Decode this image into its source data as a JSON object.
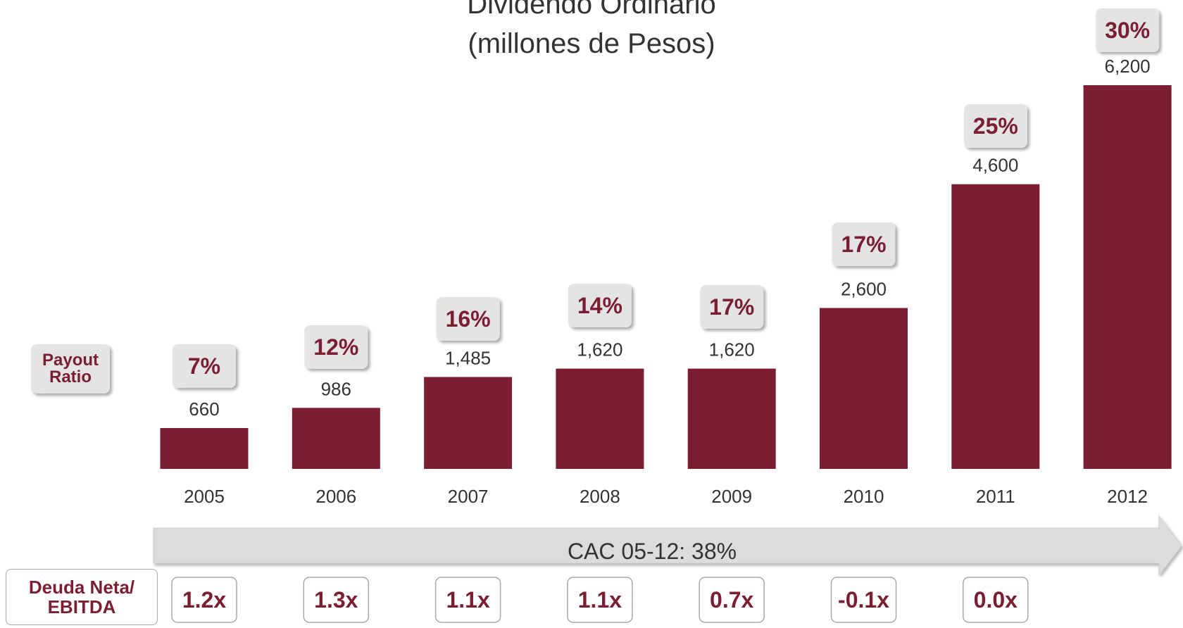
{
  "colors": {
    "bar": "#7b1e32",
    "accent_text": "#7b1e32",
    "box_fill": "#e4e4e4",
    "arrow_fill": "#dcdcdc"
  },
  "chart_data": {
    "type": "bar",
    "title_line1": "Dividendo Ordinario",
    "title_line2": "(millones de Pesos)",
    "categories": [
      "2005",
      "2006",
      "2007",
      "2008",
      "2009",
      "2010",
      "2011",
      "2012"
    ],
    "values": [
      660,
      986,
      1485,
      1620,
      1620,
      2600,
      4600,
      6200
    ],
    "value_labels": [
      "660",
      "986",
      "1,485",
      "1,620",
      "1,620",
      "2,600",
      "4,600",
      "6,200"
    ],
    "payout_ratio": [
      "7%",
      "12%",
      "16%",
      "14%",
      "17%",
      "17%",
      "25%",
      "30%"
    ],
    "deuda_neta_ebitda": [
      "1.2x",
      "1.3x",
      "1.1x",
      "1.1x",
      "0.7x",
      "-0.1x",
      "0.0x"
    ],
    "payout_label": "Payout\nRatio",
    "deuda_label": "Deuda Neta/\nEBITDA",
    "cac_label": "CAC 05-12: 38%",
    "ylim": [
      0,
      6200
    ],
    "grid": false,
    "legend": "none"
  }
}
